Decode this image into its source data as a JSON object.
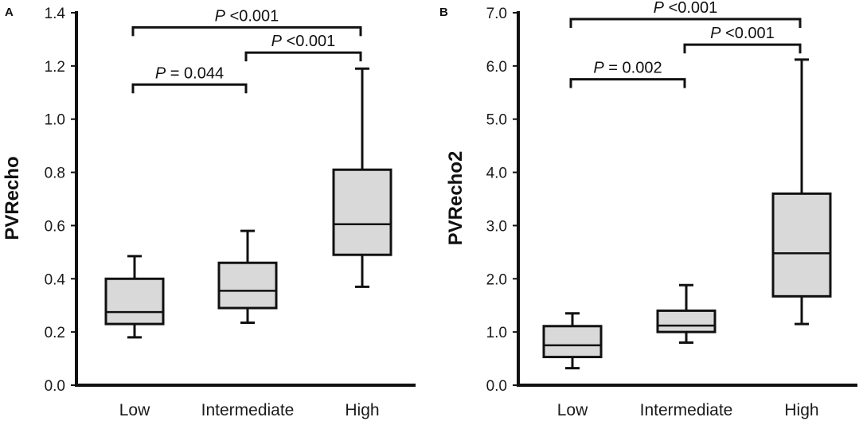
{
  "chart_data": [
    {
      "type": "box",
      "panel_label": "A",
      "ylabel": "PVRecho",
      "ylim": [
        0,
        1.4
      ],
      "yticks": [
        "0.0",
        "0.2",
        "0.4",
        "0.6",
        "0.8",
        "1.0",
        "1.2",
        "1.4"
      ],
      "ytick_values": [
        0,
        0.2,
        0.4,
        0.6,
        0.8,
        1.0,
        1.2,
        1.4
      ],
      "categories": [
        "Low",
        "Intermediate",
        "High"
      ],
      "boxes": [
        {
          "category": "Low",
          "min": 0.18,
          "q1": 0.23,
          "median": 0.275,
          "q3": 0.4,
          "max": 0.485
        },
        {
          "category": "Intermediate",
          "min": 0.235,
          "q1": 0.29,
          "median": 0.355,
          "q3": 0.46,
          "max": 0.58
        },
        {
          "category": "High",
          "min": 0.37,
          "q1": 0.49,
          "median": 0.605,
          "q3": 0.81,
          "max": 1.19
        }
      ],
      "comparisons": [
        {
          "from": "Low",
          "to": "Intermediate",
          "italic": "P",
          "text": " = 0.044",
          "level": 1.13
        },
        {
          "from": "Intermediate",
          "to": "High",
          "italic": "P",
          "text": " <0.001",
          "level": 1.25
        },
        {
          "from": "Low",
          "to": "High",
          "italic": "P",
          "text": " <0.001",
          "level": 1.345
        }
      ],
      "box_fill": "#d9d9d9",
      "line_color": "#111111"
    },
    {
      "type": "box",
      "panel_label": "B",
      "ylabel": "PVRecho2",
      "ylim": [
        0,
        7
      ],
      "yticks": [
        "0.0",
        "1.0",
        "2.0",
        "3.0",
        "4.0",
        "5.0",
        "6.0",
        "7.0"
      ],
      "ytick_values": [
        0,
        1,
        2,
        3,
        4,
        5,
        6,
        7
      ],
      "categories": [
        "Low",
        "Intermediate",
        "High"
      ],
      "boxes": [
        {
          "category": "Low",
          "min": 0.32,
          "q1": 0.53,
          "median": 0.75,
          "q3": 1.11,
          "max": 1.35
        },
        {
          "category": "Intermediate",
          "min": 0.8,
          "q1": 1.0,
          "median": 1.12,
          "q3": 1.4,
          "max": 1.88
        },
        {
          "category": "High",
          "min": 1.15,
          "q1": 1.67,
          "median": 2.48,
          "q3": 3.6,
          "max": 6.12
        }
      ],
      "comparisons": [
        {
          "from": "Low",
          "to": "Intermediate",
          "italic": "P",
          "text": " = 0.002",
          "level": 5.75
        },
        {
          "from": "Intermediate",
          "to": "High",
          "italic": "P",
          "text": " <0.001",
          "level": 6.4
        },
        {
          "from": "Low",
          "to": "High",
          "italic": "P",
          "text": " <0.001",
          "level": 6.88
        }
      ],
      "box_fill": "#d9d9d9",
      "line_color": "#111111"
    }
  ]
}
